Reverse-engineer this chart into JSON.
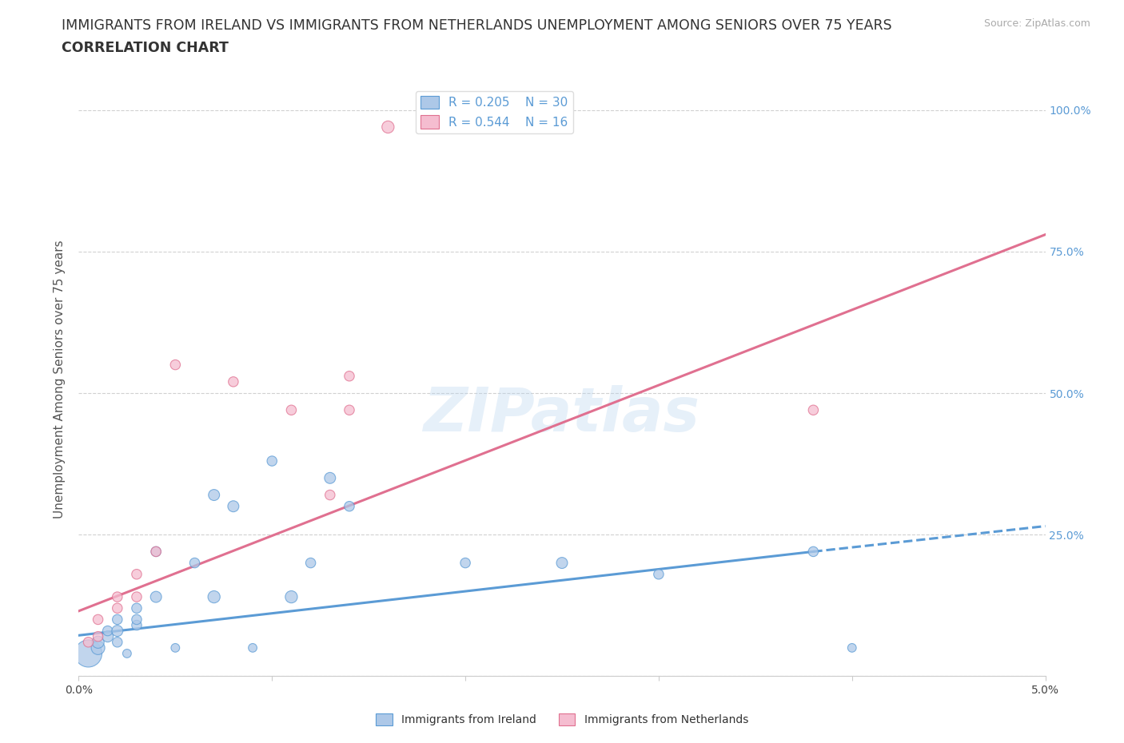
{
  "title_line1": "IMMIGRANTS FROM IRELAND VS IMMIGRANTS FROM NETHERLANDS UNEMPLOYMENT AMONG SENIORS OVER 75 YEARS",
  "title_line2": "CORRELATION CHART",
  "source_text": "Source: ZipAtlas.com",
  "ylabel": "Unemployment Among Seniors over 75 years",
  "xlim": [
    0.0,
    0.05
  ],
  "ylim": [
    0.0,
    1.05
  ],
  "x_ticks": [
    0.0,
    0.01,
    0.02,
    0.03,
    0.04,
    0.05
  ],
  "x_tick_labels": [
    "0.0%",
    "",
    "",
    "",
    "",
    "5.0%"
  ],
  "y_ticks": [
    0.0,
    0.25,
    0.5,
    0.75,
    1.0
  ],
  "y_tick_labels_right": [
    "",
    "25.0%",
    "50.0%",
    "75.0%",
    "100.0%"
  ],
  "grid_color": "#cccccc",
  "background_color": "#ffffff",
  "watermark": "ZIPatlas",
  "ireland_color": "#adc8e8",
  "ireland_color_dark": "#5b9bd5",
  "netherlands_color": "#f5bdd0",
  "netherlands_color_dark": "#e07090",
  "ireland_R": 0.205,
  "ireland_N": 30,
  "netherlands_R": 0.544,
  "netherlands_N": 16,
  "ireland_scatter_x": [
    0.0005,
    0.001,
    0.001,
    0.0015,
    0.0015,
    0.002,
    0.002,
    0.002,
    0.0025,
    0.003,
    0.003,
    0.003,
    0.004,
    0.004,
    0.005,
    0.006,
    0.007,
    0.007,
    0.008,
    0.009,
    0.01,
    0.011,
    0.012,
    0.013,
    0.014,
    0.02,
    0.025,
    0.03,
    0.038,
    0.04
  ],
  "ireland_scatter_y": [
    0.04,
    0.05,
    0.06,
    0.07,
    0.08,
    0.06,
    0.08,
    0.1,
    0.04,
    0.09,
    0.1,
    0.12,
    0.14,
    0.22,
    0.05,
    0.2,
    0.14,
    0.32,
    0.3,
    0.05,
    0.38,
    0.14,
    0.2,
    0.35,
    0.3,
    0.2,
    0.2,
    0.18,
    0.22,
    0.05
  ],
  "ireland_scatter_sizes": [
    600,
    150,
    120,
    100,
    80,
    80,
    100,
    80,
    60,
    80,
    80,
    80,
    100,
    80,
    60,
    80,
    120,
    100,
    100,
    60,
    80,
    120,
    80,
    100,
    80,
    80,
    100,
    80,
    80,
    60
  ],
  "netherlands_scatter_x": [
    0.0005,
    0.001,
    0.001,
    0.002,
    0.002,
    0.003,
    0.003,
    0.004,
    0.005,
    0.008,
    0.011,
    0.013,
    0.014,
    0.014,
    0.016,
    0.038
  ],
  "netherlands_scatter_y": [
    0.06,
    0.07,
    0.1,
    0.12,
    0.14,
    0.14,
    0.18,
    0.22,
    0.55,
    0.52,
    0.47,
    0.32,
    0.53,
    0.47,
    0.97,
    0.47
  ],
  "netherlands_scatter_sizes": [
    80,
    80,
    80,
    80,
    80,
    80,
    80,
    80,
    80,
    80,
    80,
    80,
    80,
    80,
    120,
    80
  ],
  "ireland_trend_x0": 0.0,
  "ireland_trend_x1": 0.038,
  "ireland_trend_x2": 0.05,
  "ireland_trend_y0": 0.072,
  "ireland_trend_y1": 0.22,
  "ireland_trend_y2": 0.265,
  "netherlands_trend_x0": 0.0,
  "netherlands_trend_x1": 0.05,
  "netherlands_trend_y0": 0.115,
  "netherlands_trend_y1": 0.78,
  "legend_text_color": "#5b9bd5",
  "title_fontsize": 12.5,
  "axis_label_fontsize": 11,
  "tick_fontsize": 10,
  "source_fontsize": 9
}
